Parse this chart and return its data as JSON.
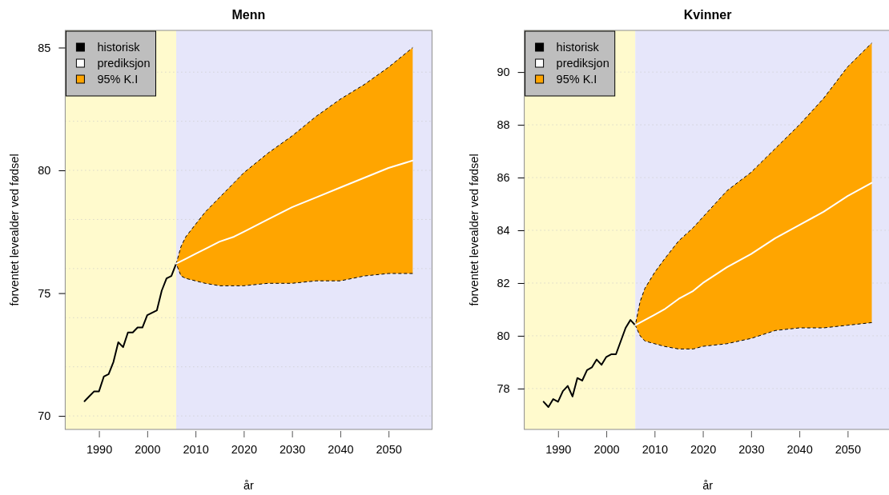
{
  "chart_data": [
    {
      "type": "line",
      "title": "Menn",
      "xlabel": "år",
      "ylabel": "forventet levealder ved fødsel",
      "xlim": [
        1983,
        2059
      ],
      "xticks": [
        1990,
        2000,
        2010,
        2020,
        2030,
        2040,
        2050
      ],
      "ylim": [
        69.45,
        85.7
      ],
      "yticks": [
        70,
        75,
        80,
        85
      ],
      "grid": "y",
      "legend": "top left",
      "bands": [
        {
          "axis": "x",
          "from": 1983,
          "to": 2006,
          "color": "#fffacd"
        },
        {
          "axis": "x",
          "from": 2006,
          "to": 2059,
          "color": "#e6e6fa"
        }
      ],
      "series": [
        {
          "name": "historisk",
          "color": "#000000",
          "x": [
            1987,
            1988,
            1989,
            1990,
            1991,
            1992,
            1993,
            1994,
            1995,
            1996,
            1997,
            1998,
            1999,
            2000,
            2001,
            2002,
            2003,
            2004,
            2005,
            2006
          ],
          "values": [
            70.6,
            70.8,
            71.0,
            71.0,
            71.6,
            71.7,
            72.2,
            73.0,
            72.8,
            73.4,
            73.4,
            73.6,
            73.6,
            74.1,
            74.2,
            74.3,
            75.1,
            75.6,
            75.7,
            76.2
          ]
        },
        {
          "name": "prediksjon",
          "color": "#ffffff",
          "x": [
            2006,
            2007,
            2008,
            2010,
            2012,
            2015,
            2018,
            2020,
            2025,
            2030,
            2035,
            2040,
            2045,
            2050,
            2055
          ],
          "values": [
            76.2,
            76.3,
            76.4,
            76.6,
            76.8,
            77.1,
            77.3,
            77.5,
            78.0,
            78.5,
            78.9,
            79.3,
            79.7,
            80.1,
            80.4
          ]
        },
        {
          "name": "95% K.I",
          "color": "#ffa500",
          "line_style": "dashed",
          "x": [
            2006,
            2007,
            2008,
            2010,
            2012,
            2015,
            2018,
            2020,
            2025,
            2030,
            2035,
            2040,
            2045,
            2050,
            2055
          ],
          "values": [
            null,
            null,
            null,
            null,
            null,
            null,
            null,
            null,
            null,
            null,
            null,
            null,
            null,
            null,
            null
          ],
          "lower": [
            76.2,
            75.7,
            75.6,
            75.5,
            75.4,
            75.3,
            75.3,
            75.3,
            75.4,
            75.4,
            75.5,
            75.5,
            75.7,
            75.8,
            75.8
          ],
          "upper": [
            76.2,
            76.9,
            77.3,
            77.8,
            78.3,
            78.9,
            79.5,
            79.9,
            80.7,
            81.4,
            82.2,
            82.9,
            83.5,
            84.2,
            85.0
          ]
        }
      ]
    },
    {
      "type": "line",
      "title": "Kvinner",
      "xlabel": "år",
      "ylabel": "forventet levealder ved fødsel",
      "xlim": [
        1983,
        2059
      ],
      "xticks": [
        1990,
        2000,
        2010,
        2020,
        2030,
        2040,
        2050
      ],
      "ylim": [
        76.45,
        91.58
      ],
      "yticks": [
        78,
        80,
        82,
        84,
        86,
        88,
        90
      ],
      "grid": "y",
      "legend": "top left",
      "bands": [
        {
          "axis": "x",
          "from": 1983,
          "to": 2006,
          "color": "#fffacd"
        },
        {
          "axis": "x",
          "from": 2006,
          "to": 2059,
          "color": "#e6e6fa"
        }
      ],
      "series": [
        {
          "name": "historisk",
          "color": "#000000",
          "x": [
            1987,
            1988,
            1989,
            1990,
            1991,
            1992,
            1993,
            1994,
            1995,
            1996,
            1997,
            1998,
            1999,
            2000,
            2001,
            2002,
            2003,
            2004,
            2005,
            2006
          ],
          "values": [
            77.5,
            77.3,
            77.6,
            77.5,
            77.9,
            78.1,
            77.7,
            78.4,
            78.3,
            78.7,
            78.8,
            79.1,
            78.9,
            79.2,
            79.3,
            79.3,
            79.8,
            80.3,
            80.6,
            80.4
          ]
        },
        {
          "name": "prediksjon",
          "color": "#ffffff",
          "x": [
            2006,
            2007,
            2008,
            2010,
            2012,
            2015,
            2018,
            2020,
            2025,
            2030,
            2035,
            2040,
            2045,
            2050,
            2055
          ],
          "values": [
            80.4,
            80.5,
            80.6,
            80.8,
            81.0,
            81.4,
            81.7,
            82.0,
            82.6,
            83.1,
            83.7,
            84.2,
            84.7,
            85.3,
            85.8
          ]
        },
        {
          "name": "95% K.I",
          "color": "#ffa500",
          "line_style": "dashed",
          "x": [
            2006,
            2007,
            2008,
            2010,
            2012,
            2015,
            2018,
            2020,
            2025,
            2030,
            2035,
            2040,
            2045,
            2050,
            2055
          ],
          "values": [
            null,
            null,
            null,
            null,
            null,
            null,
            null,
            null,
            null,
            null,
            null,
            null,
            null,
            null,
            null
          ],
          "lower": [
            80.4,
            80.0,
            79.8,
            79.7,
            79.6,
            79.5,
            79.5,
            79.6,
            79.7,
            79.9,
            80.2,
            80.3,
            80.3,
            80.4,
            80.5
          ],
          "upper": [
            80.4,
            81.3,
            81.8,
            82.4,
            82.9,
            83.6,
            84.1,
            84.5,
            85.5,
            86.2,
            87.1,
            88.0,
            89.0,
            90.2,
            91.1
          ]
        }
      ]
    }
  ]
}
